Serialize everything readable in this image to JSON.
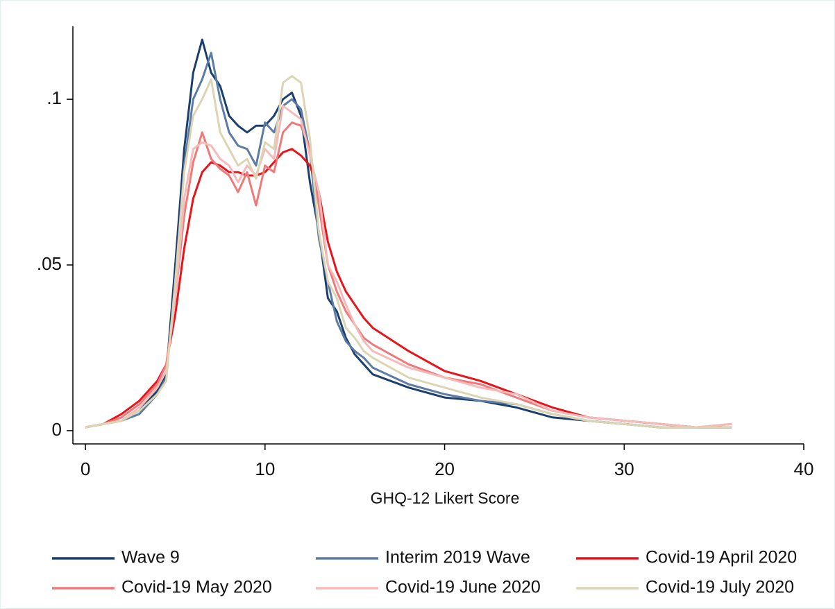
{
  "chart_data": {
    "type": "line",
    "x_label": "GHQ-12 Likert Score",
    "x": [
      0,
      1,
      2,
      3,
      4,
      4.5,
      5,
      5.5,
      6,
      6.5,
      7,
      7.5,
      8,
      8.5,
      9,
      9.5,
      10,
      10.5,
      11,
      11.5,
      12,
      12.5,
      13,
      13.5,
      14,
      14.5,
      15,
      15.5,
      16,
      18,
      20,
      22,
      24,
      26,
      28,
      30,
      32,
      34,
      36
    ],
    "xlim": [
      -0.7,
      40
    ],
    "xticks": [
      0,
      10,
      20,
      30,
      40
    ],
    "ylim": [
      -0.004,
      0.122
    ],
    "yticks": [
      0,
      {
        "value": 0.05,
        "label": ".05"
      },
      {
        "value": 0.1,
        "label": ".1"
      }
    ],
    "grid": false,
    "legend": "bottom",
    "series": [
      {
        "name": "Wave 9",
        "color": "#1c3f6e",
        "values": [
          0.001,
          0.002,
          0.003,
          0.006,
          0.012,
          0.017,
          0.05,
          0.085,
          0.108,
          0.118,
          0.108,
          0.104,
          0.095,
          0.092,
          0.09,
          0.092,
          0.092,
          0.095,
          0.1,
          0.102,
          0.095,
          0.075,
          0.06,
          0.04,
          0.036,
          0.028,
          0.023,
          0.02,
          0.017,
          0.013,
          0.01,
          0.009,
          0.007,
          0.004,
          0.003,
          0.002,
          0.001,
          0.001,
          0.001
        ]
      },
      {
        "name": "Interim 2019 Wave",
        "color": "#5c7ca3",
        "values": [
          0.001,
          0.002,
          0.003,
          0.005,
          0.011,
          0.016,
          0.045,
          0.08,
          0.1,
          0.106,
          0.114,
          0.1,
          0.09,
          0.086,
          0.085,
          0.08,
          0.093,
          0.09,
          0.098,
          0.1,
          0.097,
          0.084,
          0.058,
          0.045,
          0.033,
          0.027,
          0.024,
          0.022,
          0.019,
          0.014,
          0.011,
          0.009,
          0.008,
          0.005,
          0.003,
          0.002,
          0.001,
          0.001,
          0.001
        ]
      },
      {
        "name": "Covid-19 April 2020",
        "color": "#e8141a",
        "values": [
          0.001,
          0.002,
          0.005,
          0.009,
          0.015,
          0.02,
          0.035,
          0.055,
          0.07,
          0.078,
          0.081,
          0.08,
          0.078,
          0.078,
          0.077,
          0.077,
          0.078,
          0.081,
          0.084,
          0.085,
          0.083,
          0.08,
          0.072,
          0.057,
          0.048,
          0.042,
          0.038,
          0.034,
          0.031,
          0.024,
          0.018,
          0.015,
          0.011,
          0.007,
          0.004,
          0.003,
          0.002,
          0.001,
          0.001
        ]
      },
      {
        "name": "Covid-19 May 2020",
        "color": "#f07a7a",
        "values": [
          0.001,
          0.002,
          0.004,
          0.008,
          0.014,
          0.02,
          0.04,
          0.065,
          0.081,
          0.09,
          0.082,
          0.079,
          0.077,
          0.072,
          0.078,
          0.068,
          0.08,
          0.078,
          0.09,
          0.093,
          0.092,
          0.085,
          0.068,
          0.05,
          0.042,
          0.036,
          0.032,
          0.028,
          0.026,
          0.02,
          0.016,
          0.014,
          0.01,
          0.006,
          0.004,
          0.003,
          0.002,
          0.001,
          0.002
        ]
      },
      {
        "name": "Covid-19 June 2020",
        "color": "#f5baba",
        "values": [
          0.001,
          0.002,
          0.003,
          0.007,
          0.013,
          0.018,
          0.04,
          0.07,
          0.085,
          0.087,
          0.086,
          0.082,
          0.08,
          0.075,
          0.08,
          0.077,
          0.085,
          0.082,
          0.098,
          0.096,
          0.094,
          0.083,
          0.072,
          0.05,
          0.045,
          0.038,
          0.032,
          0.027,
          0.024,
          0.019,
          0.016,
          0.013,
          0.011,
          0.006,
          0.004,
          0.003,
          0.002,
          0.001,
          0.002
        ]
      },
      {
        "name": "Covid-19 July 2020",
        "color": "#dbd5b3",
        "values": [
          0.001,
          0.002,
          0.003,
          0.006,
          0.011,
          0.015,
          0.045,
          0.078,
          0.095,
          0.1,
          0.106,
          0.09,
          0.085,
          0.08,
          0.082,
          0.076,
          0.087,
          0.085,
          0.105,
          0.107,
          0.105,
          0.088,
          0.06,
          0.045,
          0.04,
          0.031,
          0.028,
          0.024,
          0.022,
          0.016,
          0.013,
          0.01,
          0.008,
          0.005,
          0.003,
          0.002,
          0.001,
          0.001,
          0.001
        ]
      }
    ]
  }
}
